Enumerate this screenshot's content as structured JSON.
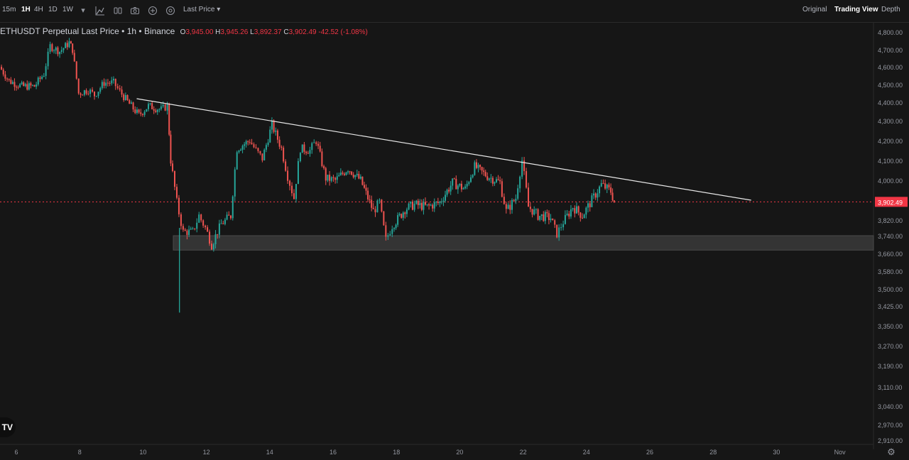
{
  "toolbar": {
    "intervals": [
      {
        "label": "15m",
        "active": false
      },
      {
        "label": "1H",
        "active": true
      },
      {
        "label": "4H",
        "active": false
      },
      {
        "label": "1D",
        "active": false
      },
      {
        "label": "1W",
        "active": false
      }
    ],
    "price_mode": "Last Price",
    "views": [
      {
        "label": "Original",
        "active": false
      },
      {
        "label": "Trading View",
        "active": true
      },
      {
        "label": "Depth",
        "active": false
      }
    ]
  },
  "legend": {
    "symbol": "ETHUSDT Perpetual Last Price",
    "interval": "1h",
    "exchange": "Binance",
    "open": "3,945.00",
    "high": "3,945.26",
    "low": "3,892.37",
    "close": "3,902.49",
    "change": "-42.52",
    "change_pct": "(-1.08%)"
  },
  "colors": {
    "background": "#161616",
    "up": "#26a69a",
    "down": "#ef5350",
    "trendline": "#e8e8e8",
    "zone": "#3a3a3a",
    "price_line": "#f23645"
  },
  "chart_data": {
    "type": "candlestick",
    "interval": "1h",
    "y_ticks": [
      4800,
      4700,
      4600,
      4500,
      4400,
      4300,
      4200,
      4100,
      4000,
      3820,
      3740,
      3660,
      3580,
      3500,
      3425,
      3350,
      3270,
      3190,
      3110,
      3040,
      2970,
      2910
    ],
    "y_tick_labels": [
      "4,800.00",
      "4,700.00",
      "4,600.00",
      "4,500.00",
      "4,400.00",
      "4,300.00",
      "4,200.00",
      "4,100.00",
      "4,000.00",
      "3,820.00",
      "3,740.00",
      "3,660.00",
      "3,580.00",
      "3,500.00",
      "3,425.00",
      "3,350.00",
      "3,270.00",
      "3,190.00",
      "3,110.00",
      "3,040.00",
      "2,970.00",
      "2,910.00"
    ],
    "x_ticks": [
      "6",
      "8",
      "10",
      "12",
      "14",
      "16",
      "18",
      "20",
      "22",
      "24",
      "26",
      "28",
      "30",
      "Nov"
    ],
    "x_tick_values": [
      6,
      8,
      10,
      12,
      14,
      16,
      18,
      20,
      22,
      24,
      26,
      28,
      30,
      32
    ],
    "x_range": [
      5.5,
      33
    ],
    "last_price": 3902.49,
    "last_price_label": "3,902.49",
    "support_zone": {
      "from_day": 11,
      "to_day": 33,
      "low": 3675,
      "high": 3740
    },
    "trendline": [
      {
        "day": 9.8,
        "price": 4420
      },
      {
        "day": 29.2,
        "price": 3910
      }
    ],
    "price_path": [
      [
        5.5,
        4600
      ],
      [
        5.8,
        4520
      ],
      [
        6.2,
        4490
      ],
      [
        6.6,
        4490
      ],
      [
        6.9,
        4560
      ],
      [
        7.1,
        4720
      ],
      [
        7.4,
        4690
      ],
      [
        7.7,
        4740
      ],
      [
        7.8,
        4700
      ],
      [
        8.0,
        4450
      ],
      [
        8.3,
        4470
      ],
      [
        8.5,
        4440
      ],
      [
        8.8,
        4510
      ],
      [
        9.1,
        4510
      ],
      [
        9.3,
        4460
      ],
      [
        9.6,
        4390
      ],
      [
        9.9,
        4330
      ],
      [
        10.2,
        4380
      ],
      [
        10.6,
        4360
      ],
      [
        10.8,
        4380
      ],
      [
        10.9,
        4100
      ],
      [
        11.1,
        3900
      ],
      [
        11.3,
        3760
      ],
      [
        11.6,
        3760
      ],
      [
        11.8,
        3840
      ],
      [
        12.0,
        3780
      ],
      [
        12.2,
        3700
      ],
      [
        12.5,
        3800
      ],
      [
        12.8,
        3840
      ],
      [
        13.0,
        4160
      ],
      [
        13.4,
        4200
      ],
      [
        13.6,
        4150
      ],
      [
        13.8,
        4110
      ],
      [
        14.1,
        4280
      ],
      [
        14.4,
        4160
      ],
      [
        14.6,
        4020
      ],
      [
        14.8,
        3920
      ],
      [
        15.0,
        4160
      ],
      [
        15.3,
        4150
      ],
      [
        15.5,
        4200
      ],
      [
        15.8,
        4010
      ],
      [
        16.1,
        4000
      ],
      [
        16.5,
        4060
      ],
      [
        16.9,
        4000
      ],
      [
        17.3,
        3860
      ],
      [
        17.5,
        3900
      ],
      [
        17.7,
        3720
      ],
      [
        17.9,
        3790
      ],
      [
        18.3,
        3870
      ],
      [
        18.6,
        3890
      ],
      [
        19.0,
        3880
      ],
      [
        19.4,
        3900
      ],
      [
        19.8,
        3990
      ],
      [
        20.2,
        3960
      ],
      [
        20.5,
        4070
      ],
      [
        20.9,
        4020
      ],
      [
        21.3,
        3990
      ],
      [
        21.5,
        3860
      ],
      [
        21.8,
        3920
      ],
      [
        22.0,
        4100
      ],
      [
        22.2,
        3880
      ],
      [
        22.5,
        3840
      ],
      [
        22.9,
        3830
      ],
      [
        23.1,
        3750
      ],
      [
        23.3,
        3810
      ],
      [
        23.6,
        3880
      ],
      [
        23.9,
        3840
      ],
      [
        24.2,
        3910
      ],
      [
        24.5,
        3980
      ],
      [
        24.8,
        3950
      ],
      [
        24.9,
        3902
      ]
    ]
  }
}
